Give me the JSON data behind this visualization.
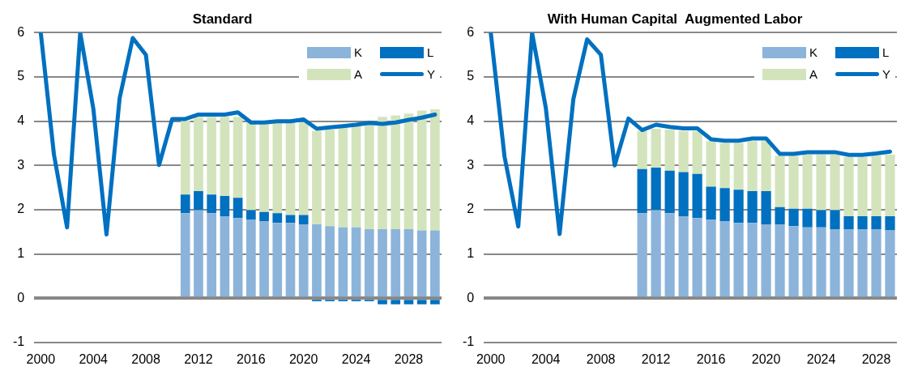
{
  "chart_data": [
    {
      "type": "bar",
      "title": "Standard",
      "categories": [
        "2000",
        null,
        null,
        null,
        "2004",
        null,
        null,
        null,
        "2008",
        null,
        null,
        null,
        "2012",
        null,
        null,
        null,
        "2016",
        null,
        null,
        null,
        "2020",
        null,
        null,
        null,
        "2024",
        null,
        null,
        null,
        "2028",
        null,
        null
      ],
      "series": [
        {
          "name": "K",
          "color": "#8cb4da",
          "values": [
            null,
            null,
            null,
            null,
            null,
            null,
            null,
            null,
            null,
            null,
            null,
            1.92,
            1.99,
            1.92,
            1.85,
            1.81,
            1.77,
            1.74,
            1.7,
            1.7,
            1.67,
            1.67,
            1.63,
            1.6,
            1.6,
            1.56,
            1.56,
            1.56,
            1.56,
            1.53,
            1.53
          ]
        },
        {
          "name": "L",
          "color": "#0070c0",
          "values": [
            null,
            null,
            null,
            null,
            null,
            null,
            null,
            null,
            null,
            null,
            null,
            0.42,
            0.43,
            0.42,
            0.46,
            0.46,
            0.22,
            0.21,
            0.22,
            0.18,
            0.21,
            -0.07,
            -0.07,
            -0.07,
            -0.07,
            -0.07,
            -0.14,
            -0.14,
            -0.14,
            -0.14,
            -0.14
          ]
        },
        {
          "name": "A",
          "color": "#d3e4bd",
          "values": [
            null,
            null,
            null,
            null,
            null,
            null,
            null,
            null,
            null,
            null,
            null,
            1.67,
            1.68,
            1.76,
            1.79,
            1.83,
            1.98,
            2.0,
            2.05,
            2.09,
            2.09,
            2.11,
            2.18,
            2.27,
            2.3,
            2.39,
            2.54,
            2.57,
            2.61,
            2.71,
            2.74
          ]
        },
        {
          "name": "Y",
          "type": "line",
          "color": "#0070c0",
          "values": [
            6,
            3.25,
            1.6,
            6,
            4.28,
            1.44,
            4.52,
            5.88,
            5.5,
            3.01,
            4.05,
            4.05,
            4.15,
            4.15,
            4.15,
            4.2,
            3.97,
            3.97,
            4.0,
            4.0,
            4.04,
            3.83,
            3.86,
            3.89,
            3.92,
            3.96,
            3.94,
            3.97,
            4.03,
            4.08,
            4.15
          ]
        }
      ],
      "stacked": true,
      "ylim": [
        -1,
        6
      ],
      "yticks": [
        -1,
        0,
        1,
        2,
        3,
        4,
        5,
        6
      ],
      "grid": "y",
      "legend": "top right",
      "marker": "none"
    },
    {
      "type": "bar",
      "title": "With Human Capital  Augmented Labor",
      "categories": [
        "2000",
        null,
        null,
        null,
        "2004",
        null,
        null,
        null,
        "2008",
        null,
        null,
        null,
        "2012",
        null,
        null,
        null,
        "2016",
        null,
        null,
        null,
        "2020",
        null,
        null,
        null,
        "2024",
        null,
        null,
        null,
        "2028",
        null
      ],
      "series": [
        {
          "name": "K",
          "color": "#8cb4da",
          "values": [
            null,
            null,
            null,
            null,
            null,
            null,
            null,
            null,
            null,
            null,
            null,
            1.92,
            1.99,
            1.92,
            1.85,
            1.81,
            1.77,
            1.74,
            1.7,
            1.7,
            1.67,
            1.67,
            1.63,
            1.6,
            1.6,
            1.56,
            1.56,
            1.56,
            1.56,
            1.53
          ]
        },
        {
          "name": "L",
          "color": "#0070c0",
          "values": [
            null,
            null,
            null,
            null,
            null,
            null,
            null,
            null,
            null,
            null,
            null,
            1.0,
            0.96,
            0.96,
            1.0,
            1.0,
            0.75,
            0.75,
            0.75,
            0.72,
            0.75,
            0.39,
            0.39,
            0.42,
            0.39,
            0.43,
            0.29,
            0.29,
            0.29,
            0.32
          ]
        },
        {
          "name": "A",
          "color": "#d3e4bd",
          "values": [
            null,
            null,
            null,
            null,
            null,
            null,
            null,
            null,
            null,
            null,
            null,
            0.86,
            0.88,
            0.93,
            0.93,
            0.97,
            1.03,
            1.02,
            1.06,
            1.13,
            1.13,
            1.16,
            1.2,
            1.23,
            1.26,
            1.26,
            1.34,
            1.34,
            1.37,
            1.4
          ]
        },
        {
          "name": "Y",
          "type": "line",
          "color": "#0070c0",
          "values": [
            6,
            3.2,
            1.62,
            6,
            4.3,
            1.45,
            4.5,
            5.85,
            5.5,
            3.0,
            4.06,
            3.8,
            3.92,
            3.87,
            3.84,
            3.84,
            3.59,
            3.56,
            3.56,
            3.61,
            3.61,
            3.26,
            3.26,
            3.3,
            3.3,
            3.3,
            3.24,
            3.24,
            3.27,
            3.31
          ]
        }
      ],
      "stacked": true,
      "ylim": [
        -1,
        6
      ],
      "yticks": [
        -1,
        0,
        1,
        2,
        3,
        4,
        5,
        6
      ],
      "grid": "y",
      "legend": "top right",
      "marker": "none"
    }
  ]
}
